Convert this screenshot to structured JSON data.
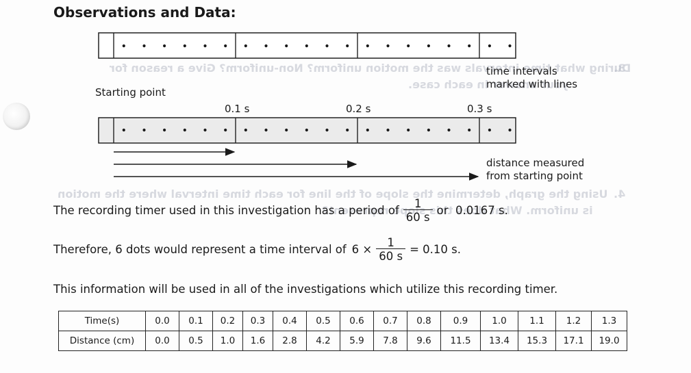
{
  "heading": "Observations and Data:",
  "ghost_text": {
    "q3_number": "3.",
    "q3_line1": "During what time intervals was the motion uniform? Non-uniform? Give a reason for",
    "q3_line2": "your answer in each case.",
    "q4_number": "4.",
    "q4_line1": "Using the graph, determine the slope of the line for each time interval where the motion",
    "q4_line2": "is uniform. What does this slope represent?"
  },
  "tape_labels": {
    "time_intervals": [
      "time intervals",
      "marked with lines"
    ],
    "starting_point": "Starting point",
    "tick_labels": [
      "0.1 s",
      "0.2 s",
      "0.3 s"
    ],
    "distance_measured": [
      "distance measured",
      "from starting point"
    ]
  },
  "period_sentence": {
    "before": "The recording timer used in this investigation has a period of",
    "frac_num": "1",
    "frac_den": "60 s",
    "after": "or  0.0167 s."
  },
  "dots_sentence": {
    "before": "Therefore, 6 dots would represent a time interval of",
    "multiplier": "6 ×",
    "frac_num": "1",
    "frac_den": "60 s",
    "after": "= 0.10 s."
  },
  "info_sentence": "This information will be used in all of the investigations which utilize this recording timer.",
  "table": {
    "row1_header": "Time(s)",
    "row2_header": "Distance (cm)",
    "times": [
      "0.0",
      "0.1",
      "0.2",
      "0.3",
      "0.4",
      "0.5",
      "0.6",
      "0.7",
      "0.8",
      "0.9",
      "1.0",
      "1.1",
      "1.2",
      "1.3"
    ],
    "distances": [
      "0.0",
      "0.5",
      "1.0",
      "1.6",
      "2.8",
      "4.2",
      "5.9",
      "7.8",
      "9.6",
      "11.5",
      "13.4",
      "15.3",
      "17.1",
      "19.0"
    ]
  }
}
